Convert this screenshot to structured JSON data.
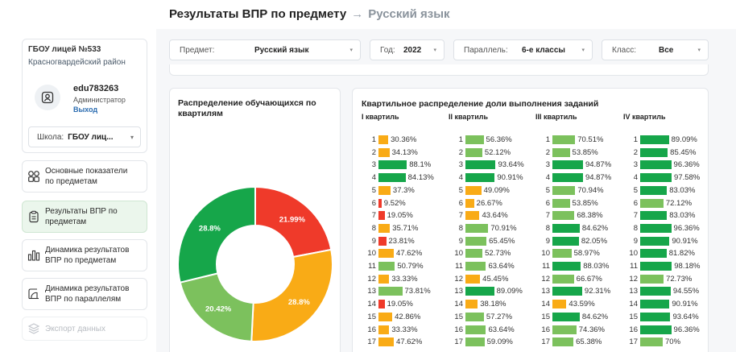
{
  "header": {
    "title": "Результаты ВПР по предмету",
    "arrow": "→",
    "subject": "Русский язык"
  },
  "org": {
    "name": "ГБОУ лицей №533",
    "district": "Красногвардейский район"
  },
  "user": {
    "login": "edu783263",
    "role": "Администратор",
    "logout": "Выход"
  },
  "school_select": {
    "label": "Школа:",
    "value": "ГБОУ лиц..."
  },
  "nav": [
    {
      "label1": "Основные показатели",
      "label2": "по предметам"
    },
    {
      "label1": "Результаты ВПР по",
      "label2": "предметам"
    },
    {
      "label1": "Динамика результатов",
      "label2": "ВПР по предметам"
    },
    {
      "label1": "Динамика результатов",
      "label2": "ВПР по параллелям"
    },
    {
      "label1": "Экспорт данных",
      "label2": ""
    }
  ],
  "filters": {
    "subject": {
      "label": "Предмет:",
      "value": "Русский язык"
    },
    "year": {
      "label": "Год:",
      "value": "2022"
    },
    "parallel": {
      "label": "Параллель:",
      "value": "6-е классы"
    },
    "class": {
      "label": "Класс:",
      "value": "Все"
    }
  },
  "colors": {
    "red": "#ef3a2a",
    "orange": "#f9ab16",
    "lightgreen": "#7cc15d",
    "green": "#16a64a"
  },
  "pie": {
    "title1": "Распределение обучающихся по",
    "title2": "квартилям",
    "slices": [
      {
        "label": "21.99%",
        "value": 21.99,
        "color": "#ef3a2a"
      },
      {
        "label": "28.8%",
        "value": 28.8,
        "color": "#f9ab16"
      },
      {
        "label": "20.42%",
        "value": 20.42,
        "color": "#7cc15d"
      },
      {
        "label": "28.8%",
        "value": 28.8,
        "color": "#16a64a"
      }
    ]
  },
  "quartiles": {
    "title": "Квартильное распределение доли выполнения заданий",
    "columns": [
      {
        "name": "I квартиль",
        "rows": [
          {
            "n": "1",
            "v": 30.36,
            "t": "30.36%"
          },
          {
            "n": "2",
            "v": 34.13,
            "t": "34.13%"
          },
          {
            "n": "3",
            "v": 88.1,
            "t": "88.1%"
          },
          {
            "n": "4",
            "v": 84.13,
            "t": "84.13%"
          },
          {
            "n": "5",
            "v": 37.3,
            "t": "37.3%"
          },
          {
            "n": "6",
            "v": 9.52,
            "t": "9.52%"
          },
          {
            "n": "7",
            "v": 19.05,
            "t": "19.05%"
          },
          {
            "n": "8",
            "v": 35.71,
            "t": "35.71%"
          },
          {
            "n": "9",
            "v": 23.81,
            "t": "23.81%"
          },
          {
            "n": "10",
            "v": 47.62,
            "t": "47.62%"
          },
          {
            "n": "11",
            "v": 50.79,
            "t": "50.79%"
          },
          {
            "n": "12",
            "v": 33.33,
            "t": "33.33%"
          },
          {
            "n": "13",
            "v": 73.81,
            "t": "73.81%"
          },
          {
            "n": "14",
            "v": 19.05,
            "t": "19.05%"
          },
          {
            "n": "15",
            "v": 42.86,
            "t": "42.86%"
          },
          {
            "n": "16",
            "v": 33.33,
            "t": "33.33%"
          },
          {
            "n": "17",
            "v": 47.62,
            "t": "47.62%"
          }
        ]
      },
      {
        "name": "II квартиль",
        "rows": [
          {
            "n": "1",
            "v": 56.36,
            "t": "56.36%"
          },
          {
            "n": "2",
            "v": 52.12,
            "t": "52.12%"
          },
          {
            "n": "3",
            "v": 93.64,
            "t": "93.64%"
          },
          {
            "n": "4",
            "v": 90.91,
            "t": "90.91%"
          },
          {
            "n": "5",
            "v": 49.09,
            "t": "49.09%"
          },
          {
            "n": "6",
            "v": 26.67,
            "t": "26.67%"
          },
          {
            "n": "7",
            "v": 43.64,
            "t": "43.64%"
          },
          {
            "n": "8",
            "v": 70.91,
            "t": "70.91%"
          },
          {
            "n": "9",
            "v": 65.45,
            "t": "65.45%"
          },
          {
            "n": "10",
            "v": 52.73,
            "t": "52.73%"
          },
          {
            "n": "11",
            "v": 63.64,
            "t": "63.64%"
          },
          {
            "n": "12",
            "v": 45.45,
            "t": "45.45%"
          },
          {
            "n": "13",
            "v": 89.09,
            "t": "89.09%"
          },
          {
            "n": "14",
            "v": 38.18,
            "t": "38.18%"
          },
          {
            "n": "15",
            "v": 57.27,
            "t": "57.27%"
          },
          {
            "n": "16",
            "v": 63.64,
            "t": "63.64%"
          },
          {
            "n": "17",
            "v": 59.09,
            "t": "59.09%"
          }
        ]
      },
      {
        "name": "III квартиль",
        "rows": [
          {
            "n": "1",
            "v": 70.51,
            "t": "70.51%"
          },
          {
            "n": "2",
            "v": 53.85,
            "t": "53.85%"
          },
          {
            "n": "3",
            "v": 94.87,
            "t": "94.87%"
          },
          {
            "n": "4",
            "v": 94.87,
            "t": "94.87%"
          },
          {
            "n": "5",
            "v": 70.94,
            "t": "70.94%"
          },
          {
            "n": "6",
            "v": 53.85,
            "t": "53.85%"
          },
          {
            "n": "7",
            "v": 68.38,
            "t": "68.38%"
          },
          {
            "n": "8",
            "v": 84.62,
            "t": "84.62%"
          },
          {
            "n": "9",
            "v": 82.05,
            "t": "82.05%"
          },
          {
            "n": "10",
            "v": 58.97,
            "t": "58.97%"
          },
          {
            "n": "11",
            "v": 88.03,
            "t": "88.03%"
          },
          {
            "n": "12",
            "v": 66.67,
            "t": "66.67%"
          },
          {
            "n": "13",
            "v": 92.31,
            "t": "92.31%"
          },
          {
            "n": "14",
            "v": 43.59,
            "t": "43.59%"
          },
          {
            "n": "15",
            "v": 84.62,
            "t": "84.62%"
          },
          {
            "n": "16",
            "v": 74.36,
            "t": "74.36%"
          },
          {
            "n": "17",
            "v": 65.38,
            "t": "65.38%"
          }
        ]
      },
      {
        "name": "IV квартиль",
        "rows": [
          {
            "n": "1",
            "v": 89.09,
            "t": "89.09%"
          },
          {
            "n": "2",
            "v": 85.45,
            "t": "85.45%"
          },
          {
            "n": "3",
            "v": 96.36,
            "t": "96.36%"
          },
          {
            "n": "4",
            "v": 97.58,
            "t": "97.58%"
          },
          {
            "n": "5",
            "v": 83.03,
            "t": "83.03%"
          },
          {
            "n": "6",
            "v": 72.12,
            "t": "72.12%"
          },
          {
            "n": "7",
            "v": 83.03,
            "t": "83.03%"
          },
          {
            "n": "8",
            "v": 96.36,
            "t": "96.36%"
          },
          {
            "n": "9",
            "v": 90.91,
            "t": "90.91%"
          },
          {
            "n": "10",
            "v": 81.82,
            "t": "81.82%"
          },
          {
            "n": "11",
            "v": 98.18,
            "t": "98.18%"
          },
          {
            "n": "12",
            "v": 72.73,
            "t": "72.73%"
          },
          {
            "n": "13",
            "v": 94.55,
            "t": "94.55%"
          },
          {
            "n": "14",
            "v": 90.91,
            "t": "90.91%"
          },
          {
            "n": "15",
            "v": 93.64,
            "t": "93.64%"
          },
          {
            "n": "16",
            "v": 96.36,
            "t": "96.36%"
          },
          {
            "n": "17",
            "v": 70,
            "t": "70%"
          }
        ]
      }
    ]
  }
}
